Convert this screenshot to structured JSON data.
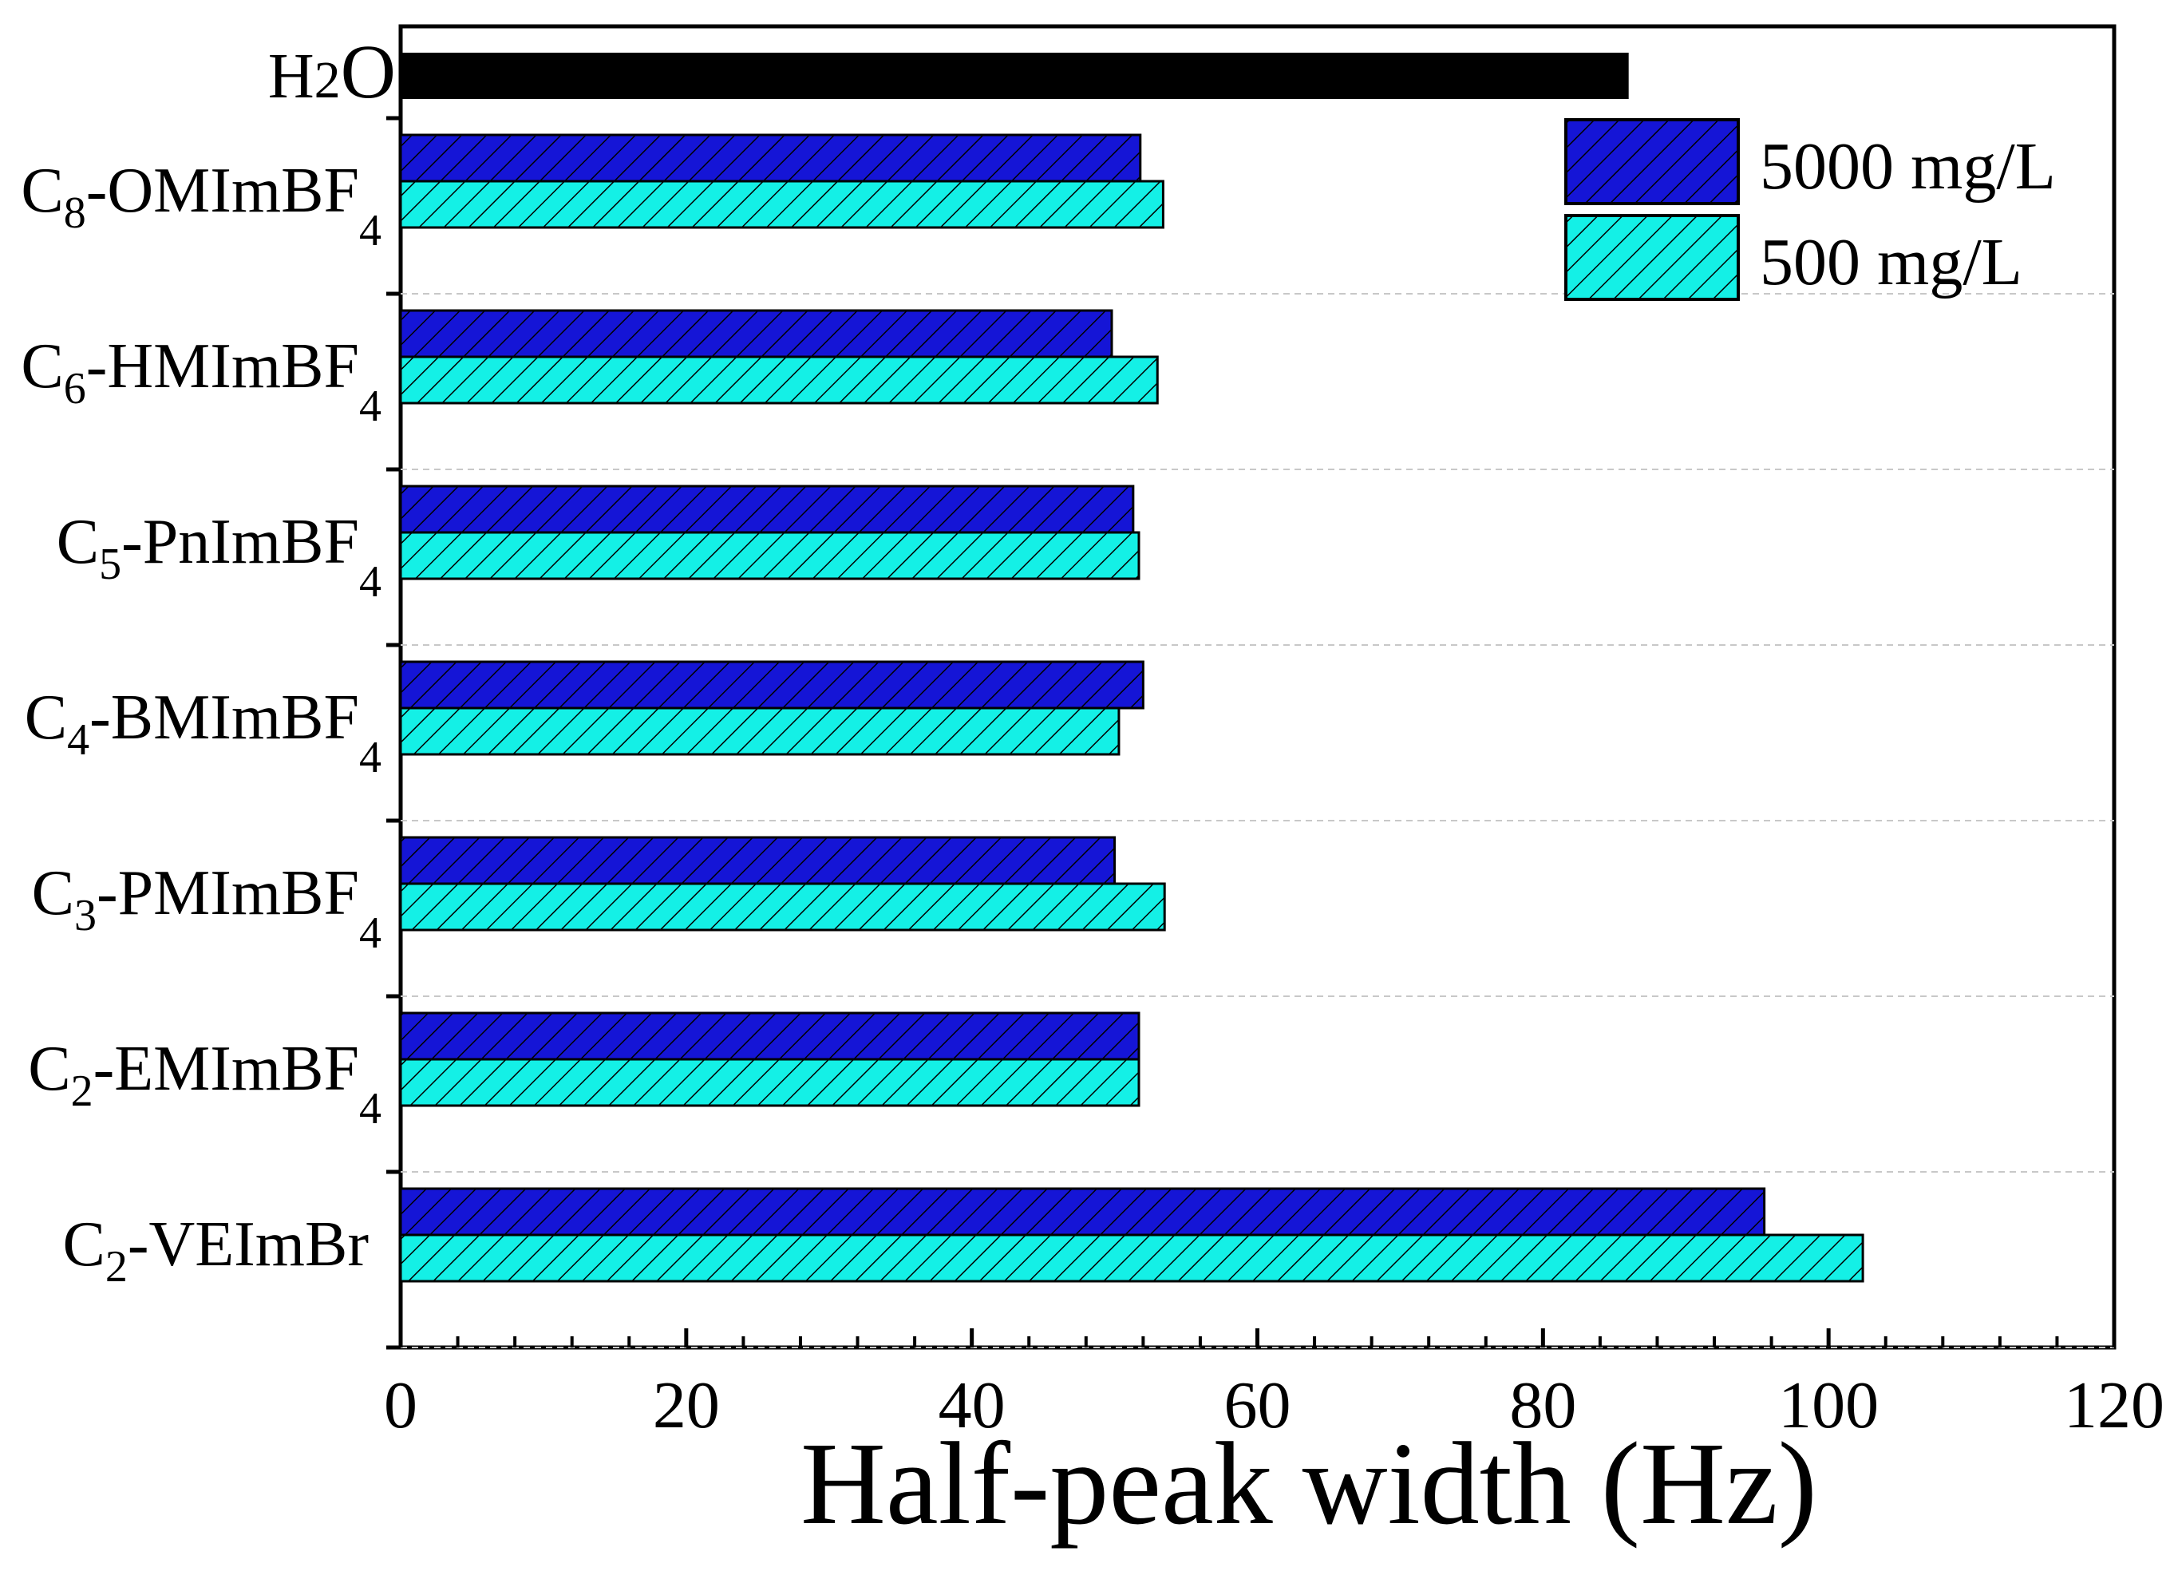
{
  "chart_data": {
    "type": "bar",
    "orientation": "horizontal",
    "xlabel": "Half-peak width (Hz)",
    "ylabel": "",
    "xlim": [
      0,
      120
    ],
    "x_ticks": [
      "0",
      "20",
      "40",
      "60",
      "80",
      "100",
      "120"
    ],
    "grid": "horizontal dashed separators",
    "legend_position": "top-right",
    "reference": {
      "label": "H",
      "sub": "2",
      "tail": "O",
      "value": 86,
      "color": "#000000"
    },
    "categories": [
      {
        "prefix": "C",
        "sub": "8",
        "main": "-OMImBF",
        "tail_sub": "4"
      },
      {
        "prefix": "C",
        "sub": "6",
        "main": "-HMImBF",
        "tail_sub": "4"
      },
      {
        "prefix": "C",
        "sub": "5",
        "main": "-PnImBF",
        "tail_sub": "4"
      },
      {
        "prefix": "C",
        "sub": "4",
        "main": "-BMImBF",
        "tail_sub": "4"
      },
      {
        "prefix": "C",
        "sub": "3",
        "main": "-PMImBF",
        "tail_sub": "4"
      },
      {
        "prefix": "C",
        "sub": "2",
        "main": "-EMImBF",
        "tail_sub": "4"
      },
      {
        "prefix": "C",
        "sub": "2",
        "main": "-VEImBr",
        "tail_sub": ""
      }
    ],
    "series": [
      {
        "name": "5000 mg/L",
        "color": "#1515d6",
        "values": [
          51.8,
          49.8,
          51.3,
          52,
          50,
          51.7,
          95.5
        ]
      },
      {
        "name": "500 mg/L",
        "color": "#14f0e6",
        "values": [
          53.4,
          53.0,
          51.7,
          50.3,
          53.5,
          51.7,
          102.4
        ]
      }
    ]
  }
}
